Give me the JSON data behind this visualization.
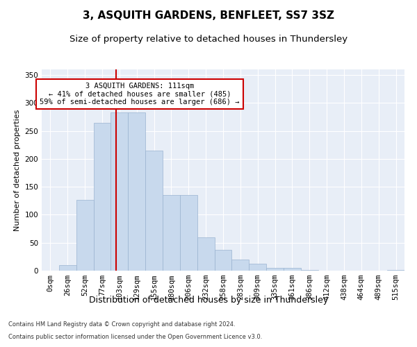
{
  "title": "3, ASQUITH GARDENS, BENFLEET, SS7 3SZ",
  "subtitle": "Size of property relative to detached houses in Thundersley",
  "xlabel": "Distribution of detached houses by size in Thundersley",
  "ylabel": "Number of detached properties",
  "bar_labels": [
    "0sqm",
    "26sqm",
    "52sqm",
    "77sqm",
    "103sqm",
    "129sqm",
    "155sqm",
    "180sqm",
    "206sqm",
    "232sqm",
    "258sqm",
    "283sqm",
    "309sqm",
    "335sqm",
    "361sqm",
    "386sqm",
    "412sqm",
    "438sqm",
    "464sqm",
    "489sqm",
    "515sqm"
  ],
  "bar_values": [
    0,
    10,
    127,
    265,
    283,
    283,
    215,
    135,
    135,
    60,
    37,
    20,
    12,
    5,
    5,
    1,
    0,
    0,
    0,
    0,
    1
  ],
  "bar_color": "#c8d9ed",
  "bar_edge_color": "#9ab3d0",
  "vline_color": "#cc0000",
  "annotation_text": "3 ASQUITH GARDENS: 111sqm\n← 41% of detached houses are smaller (485)\n59% of semi-detached houses are larger (686) →",
  "annotation_box_color": "#ffffff",
  "annotation_box_edge": "#cc0000",
  "ylim": [
    0,
    360
  ],
  "yticks": [
    0,
    50,
    100,
    150,
    200,
    250,
    300,
    350
  ],
  "background_color": "#e8eef7",
  "footnote1": "Contains HM Land Registry data © Crown copyright and database right 2024.",
  "footnote2": "Contains public sector information licensed under the Open Government Licence v3.0.",
  "title_fontsize": 11,
  "subtitle_fontsize": 9.5,
  "xlabel_fontsize": 9,
  "ylabel_fontsize": 8,
  "tick_fontsize": 7.5,
  "annot_fontsize": 7.5,
  "footnote_fontsize": 6
}
